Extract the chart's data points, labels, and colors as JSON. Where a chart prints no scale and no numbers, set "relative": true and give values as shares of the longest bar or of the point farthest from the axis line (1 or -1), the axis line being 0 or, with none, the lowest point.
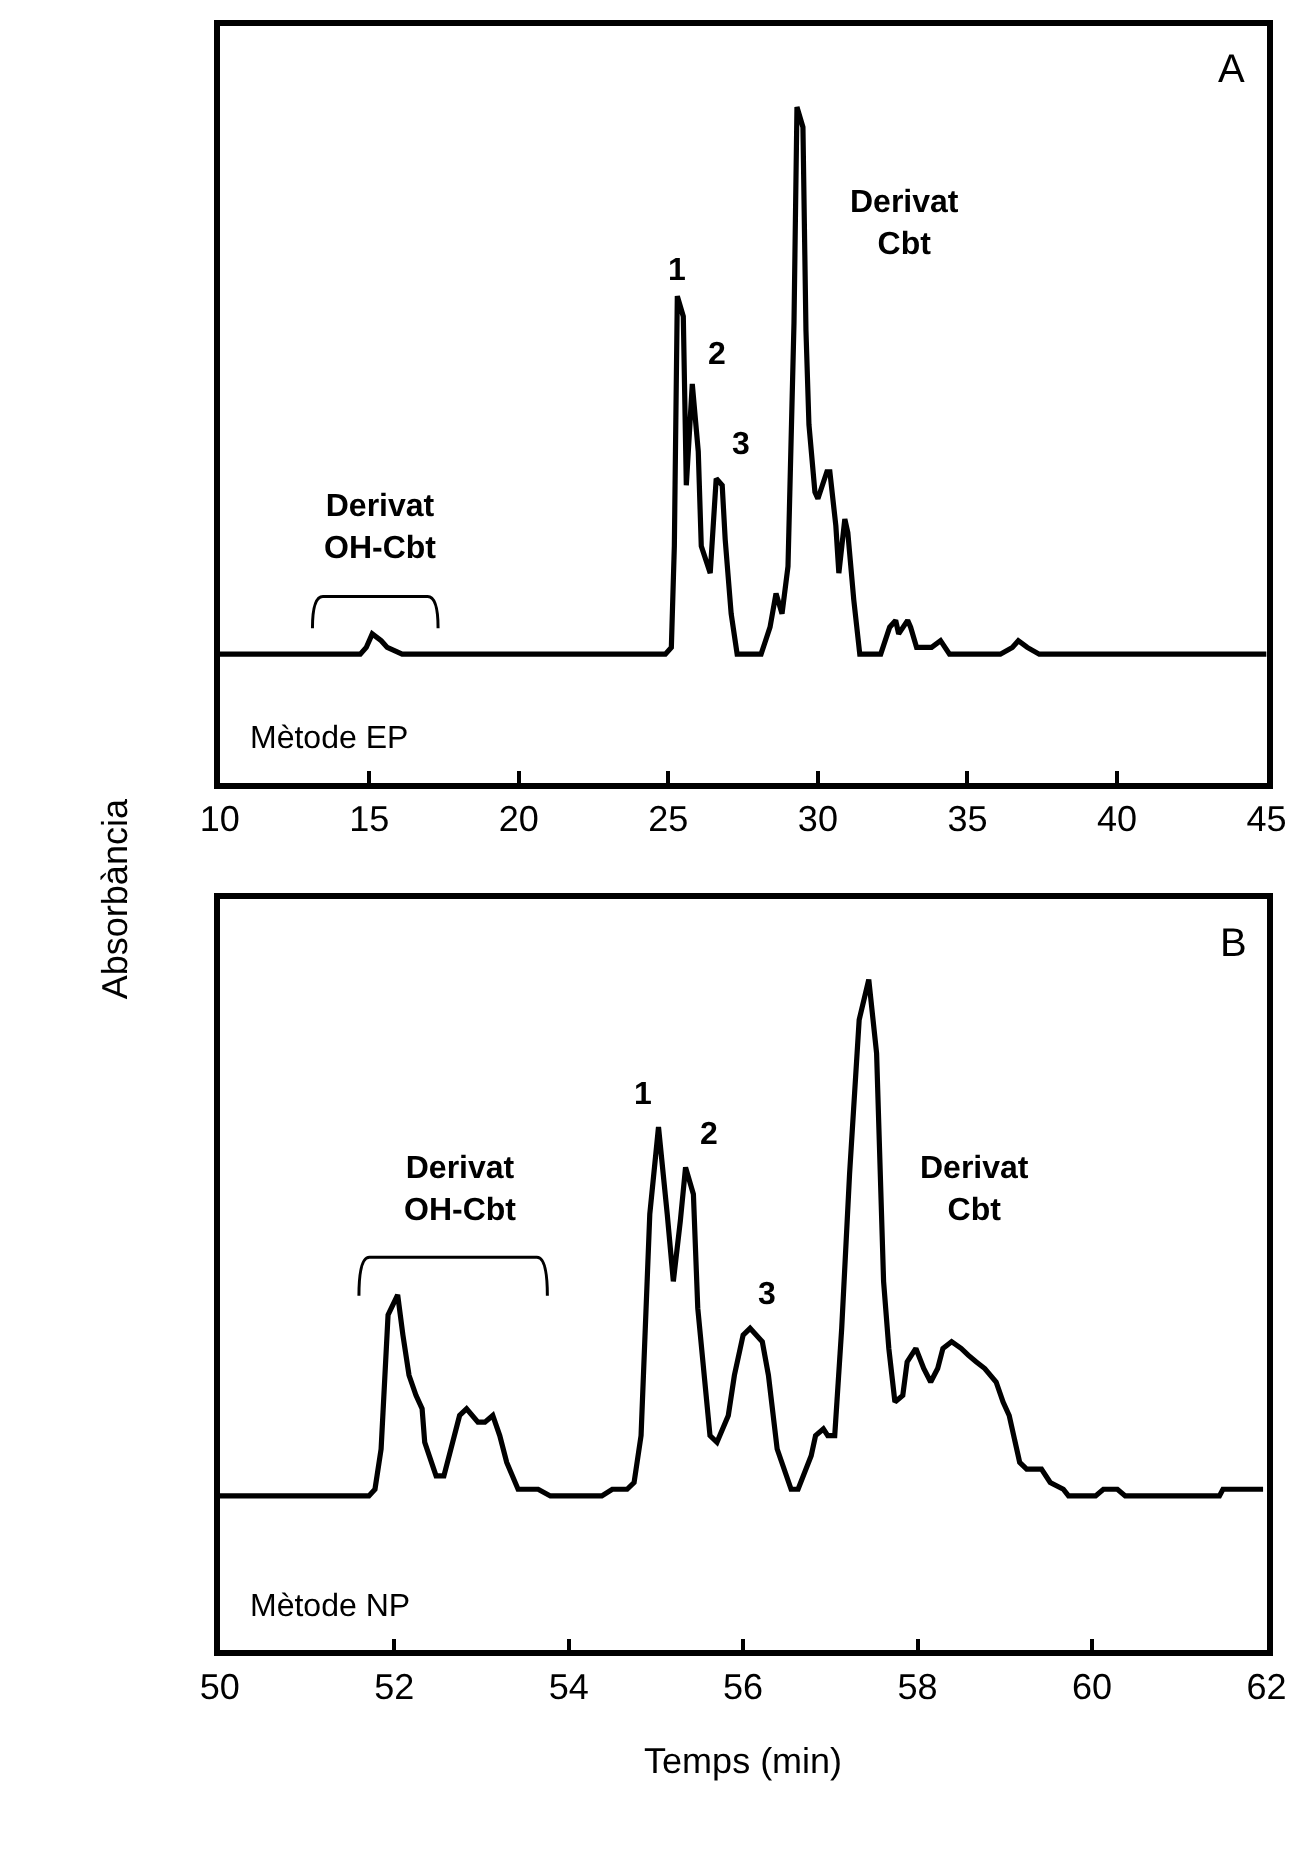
{
  "chart_data": [
    {
      "type": "line",
      "relative": true,
      "ylabel": "Absorbància",
      "xlim": [
        10,
        45
      ],
      "xticks": [
        10,
        15,
        20,
        25,
        30,
        35,
        40,
        45
      ],
      "marker": "none",
      "line_style": "solid",
      "series": [
        {
          "color": "#000000",
          "x": [
            10.0,
            11.0,
            11.3,
            14.7,
            14.9,
            15.1,
            15.4,
            15.6,
            16.1,
            20.5,
            20.7,
            21.0,
            22.4,
            22.6,
            22.8,
            24.9,
            25.1,
            25.2,
            25.3,
            25.5,
            25.6,
            25.8,
            26.0,
            26.1,
            26.4,
            26.6,
            26.8,
            26.9,
            27.1,
            27.3,
            27.6,
            28.1,
            28.4,
            28.6,
            28.8,
            29.0,
            29.2,
            29.3,
            29.5,
            29.6,
            29.7,
            29.9,
            30.0,
            30.3,
            30.4,
            30.6,
            30.7,
            30.9,
            31.0,
            31.2,
            31.4,
            32.1,
            32.4,
            32.6,
            32.7,
            33.0,
            33.1,
            33.3,
            33.8,
            34.1,
            34.4,
            34.8,
            35.0,
            35.3,
            36.1,
            36.5,
            36.7,
            37.0,
            37.4,
            37.7,
            40.8,
            40.9,
            41.1,
            45.0
          ],
          "values": [
            0.19,
            0.19,
            0.19,
            0.19,
            0.2,
            0.22,
            0.21,
            0.2,
            0.19,
            0.19,
            0.19,
            0.19,
            0.19,
            0.19,
            0.19,
            0.19,
            0.2,
            0.35,
            0.72,
            0.69,
            0.44,
            0.59,
            0.49,
            0.35,
            0.31,
            0.45,
            0.44,
            0.36,
            0.25,
            0.19,
            0.19,
            0.19,
            0.23,
            0.28,
            0.25,
            0.32,
            0.68,
            1.0,
            0.97,
            0.67,
            0.53,
            0.43,
            0.42,
            0.46,
            0.46,
            0.38,
            0.31,
            0.39,
            0.37,
            0.27,
            0.19,
            0.19,
            0.23,
            0.24,
            0.22,
            0.24,
            0.23,
            0.2,
            0.2,
            0.21,
            0.19,
            0.19,
            0.19,
            0.19,
            0.19,
            0.2,
            0.21,
            0.2,
            0.19,
            0.19,
            0.19,
            0.19,
            0.19,
            0.19
          ]
        }
      ],
      "annotations": [
        {
          "text": "1",
          "x": 25.3,
          "y": 0.72
        },
        {
          "text": "2",
          "x": 25.8,
          "y": 0.59
        },
        {
          "text": "3",
          "x": 26.6,
          "y": 0.45
        },
        "Derivat\nCbt",
        "Derivat\nOH-Cbt",
        "A",
        "Mètode EP"
      ]
    },
    {
      "type": "line",
      "relative": true,
      "xlabel": "Temps (min)",
      "xlim": [
        50,
        62
      ],
      "xticks": [
        50,
        52,
        54,
        56,
        58,
        60,
        62
      ],
      "marker": "none",
      "line_style": "solid",
      "series": [
        {
          "color": "#000000",
          "x": [
            50.0,
            51.71,
            51.78,
            51.85,
            51.93,
            52.04,
            52.1,
            52.17,
            52.25,
            52.32,
            52.35,
            52.48,
            52.57,
            52.67,
            52.75,
            52.83,
            52.96,
            53.04,
            53.13,
            53.21,
            53.29,
            53.42,
            53.52,
            53.58,
            53.65,
            53.79,
            54.38,
            54.5,
            54.67,
            54.75,
            54.83,
            54.93,
            55.03,
            55.13,
            55.2,
            55.28,
            55.34,
            55.43,
            55.48,
            55.62,
            55.7,
            55.83,
            55.9,
            56.0,
            56.08,
            56.22,
            56.29,
            56.39,
            56.55,
            56.63,
            56.78,
            56.83,
            56.92,
            56.97,
            57.05,
            57.13,
            57.22,
            57.33,
            57.44,
            57.53,
            57.61,
            57.67,
            57.74,
            57.83,
            57.88,
            57.98,
            58.07,
            58.15,
            58.23,
            58.29,
            58.39,
            58.5,
            58.58,
            58.67,
            58.77,
            58.9,
            58.98,
            59.05,
            59.17,
            59.25,
            59.42,
            59.52,
            59.67,
            59.73,
            60.04,
            60.13,
            60.29,
            60.38,
            60.58,
            60.67,
            61.46,
            61.5,
            61.96
          ],
          "values": [
            0.23,
            0.23,
            0.24,
            0.3,
            0.5,
            0.53,
            0.47,
            0.41,
            0.38,
            0.36,
            0.31,
            0.26,
            0.26,
            0.31,
            0.35,
            0.36,
            0.34,
            0.34,
            0.35,
            0.32,
            0.28,
            0.24,
            0.24,
            0.24,
            0.24,
            0.23,
            0.23,
            0.24,
            0.24,
            0.25,
            0.32,
            0.65,
            0.78,
            0.65,
            0.55,
            0.64,
            0.72,
            0.68,
            0.51,
            0.32,
            0.31,
            0.35,
            0.41,
            0.47,
            0.48,
            0.46,
            0.41,
            0.3,
            0.24,
            0.24,
            0.29,
            0.32,
            0.33,
            0.32,
            0.32,
            0.48,
            0.71,
            0.94,
            1.0,
            0.89,
            0.55,
            0.45,
            0.37,
            0.38,
            0.43,
            0.45,
            0.42,
            0.4,
            0.42,
            0.45,
            0.46,
            0.45,
            0.44,
            0.43,
            0.42,
            0.4,
            0.37,
            0.35,
            0.28,
            0.27,
            0.27,
            0.25,
            0.24,
            0.23,
            0.23,
            0.24,
            0.24,
            0.23,
            0.23,
            0.23,
            0.23,
            0.24,
            0.24
          ]
        }
      ],
      "annotations": [
        {
          "text": "1",
          "x": 55.03,
          "y": 0.78
        },
        {
          "text": "2",
          "x": 55.34,
          "y": 0.72
        },
        {
          "text": "3",
          "x": 56.08,
          "y": 0.48
        },
        "Derivat\nCbt",
        "Derivat\nOH-Cbt",
        "B",
        "Mètode NP"
      ]
    }
  ]
}
